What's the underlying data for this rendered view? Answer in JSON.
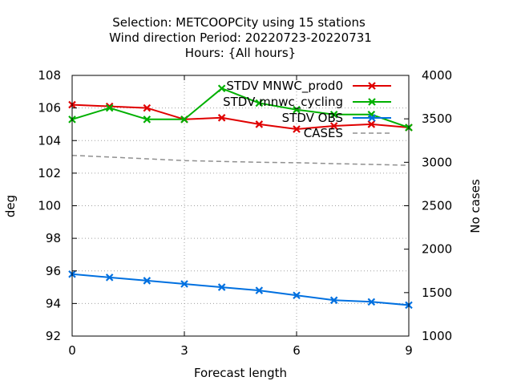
{
  "chart_data": {
    "type": "line",
    "title_lines": [
      "Selection: METCOOPCity using    15 stations",
      "Wind direction   Period: 20220723-20220731",
      "Hours: {All hours}"
    ],
    "xlabel": "Forecast length",
    "ylabel": "deg",
    "y2label": "No cases",
    "xlim": [
      0,
      9
    ],
    "ylim": [
      92,
      108
    ],
    "y2lim": [
      1000,
      4000
    ],
    "xticks": [
      "0",
      "3",
      "6",
      "9"
    ],
    "yticks": [
      "92",
      "94",
      "96",
      "98",
      "100",
      "102",
      "104",
      "106",
      "108"
    ],
    "y2ticks": [
      "1000",
      "1500",
      "2000",
      "2500",
      "3000",
      "3500",
      "4000"
    ],
    "grid": true,
    "legend_position": "top-right",
    "x": [
      0,
      1,
      2,
      3,
      4,
      5,
      6,
      7,
      8,
      9
    ],
    "series": [
      {
        "name": "STDV MNWC_prod0",
        "axis": "left",
        "color": "#e00000",
        "marker": "x",
        "values": [
          106.2,
          106.1,
          106.0,
          105.3,
          105.4,
          105.0,
          104.7,
          104.9,
          105.0,
          104.8
        ]
      },
      {
        "name": "STDV mnwc_cycling",
        "axis": "left",
        "color": "#00b000",
        "marker": "x",
        "values": [
          105.3,
          106.0,
          105.3,
          105.3,
          107.2,
          106.3,
          105.9,
          105.6,
          105.6,
          104.8
        ]
      },
      {
        "name": "STDV OBS",
        "axis": "left",
        "color": "#0070e0",
        "marker": "x",
        "values": [
          95.8,
          95.6,
          95.4,
          95.2,
          95.0,
          94.8,
          94.5,
          94.2,
          94.1,
          93.9
        ]
      },
      {
        "name": "CASES",
        "axis": "right",
        "color": "#909090",
        "marker": "none",
        "dashed": true,
        "values": [
          3080,
          3060,
          3040,
          3020,
          3010,
          3000,
          2995,
          2985,
          2975,
          2965
        ]
      }
    ]
  }
}
